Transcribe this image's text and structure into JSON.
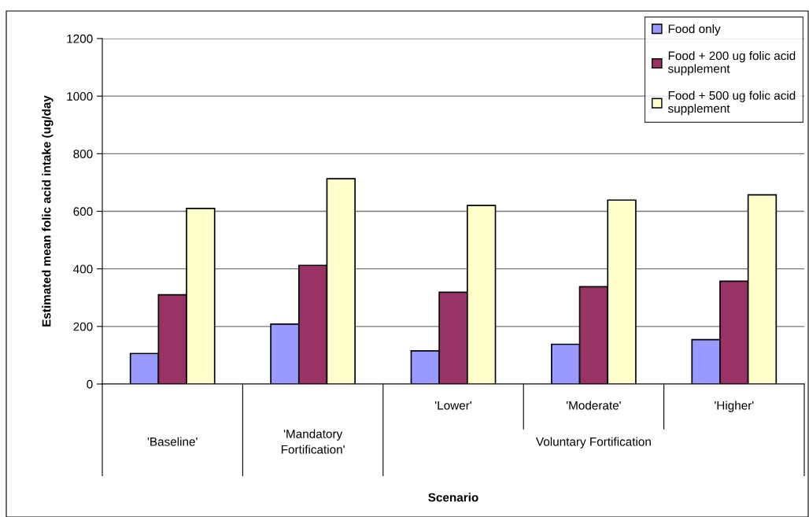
{
  "chart_data": {
    "type": "bar",
    "xlabel": "Scenario",
    "ylabel": "Estimated mean folic acid intake (ug/day",
    "categories": [
      "'Baseline'",
      "'Mandatory\nFortification'",
      "'Lower'",
      "'Moderate'",
      "'Higher'"
    ],
    "annotations": [
      "Voluntary Fortification"
    ],
    "series": [
      {
        "name": "Food only",
        "color": "#9999ff",
        "values": [
          106,
          208,
          115,
          138,
          154
        ]
      },
      {
        "name": "Food + 200 ug folic acid\nsupplement",
        "color": "#993366",
        "values": [
          310,
          412,
          319,
          338,
          357
        ]
      },
      {
        "name": "Food + 500 ug folic acid\nsupplement",
        "color": "#ffffcc",
        "values": [
          610,
          713,
          620,
          639,
          657
        ]
      }
    ],
    "ylim": [
      0,
      1200
    ],
    "yticks": [
      0,
      200,
      400,
      600,
      800,
      1000,
      1200
    ],
    "grid": "y",
    "legend": "top right"
  }
}
